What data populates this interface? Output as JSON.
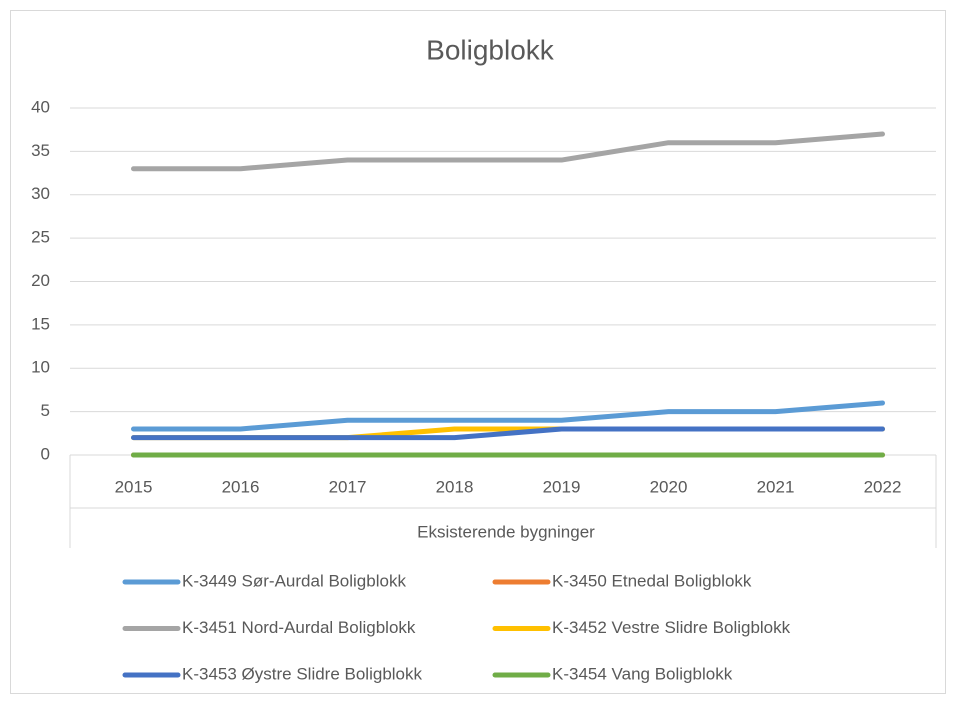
{
  "chart_data": {
    "type": "line",
    "title": "Boligblokk",
    "xlabel": "Eksisterende bygninger",
    "categories": [
      "2015",
      "2016",
      "2017",
      "2018",
      "2019",
      "2020",
      "2021",
      "2022"
    ],
    "series": [
      {
        "name": "K-3449 Sør-Aurdal Boligblokk",
        "color": "#5b9bd5",
        "values": [
          3,
          3,
          4,
          4,
          4,
          5,
          5,
          6
        ]
      },
      {
        "name": "K-3450 Etnedal Boligblokk",
        "color": "#ed7d31",
        "values": [
          0,
          0,
          0,
          0,
          0,
          0,
          0,
          0
        ]
      },
      {
        "name": "K-3451 Nord-Aurdal Boligblokk",
        "color": "#a5a5a5",
        "values": [
          33,
          33,
          34,
          34,
          34,
          36,
          36,
          37
        ]
      },
      {
        "name": "K-3452 Vestre Slidre Boligblokk",
        "color": "#ffc000",
        "values": [
          2,
          2,
          2,
          3,
          3,
          3,
          3,
          3
        ]
      },
      {
        "name": "K-3453 Øystre Slidre Boligblokk",
        "color": "#4472c4",
        "values": [
          2,
          2,
          2,
          2,
          3,
          3,
          3,
          3
        ]
      },
      {
        "name": "K-3454 Vang Boligblokk",
        "color": "#70ad47",
        "values": [
          0,
          0,
          0,
          0,
          0,
          0,
          0,
          0
        ]
      }
    ],
    "ylim": [
      0,
      40
    ],
    "yticks": [
      0,
      5,
      10,
      15,
      20,
      25,
      30,
      35,
      40
    ],
    "grid": true,
    "legend": "bottom"
  }
}
